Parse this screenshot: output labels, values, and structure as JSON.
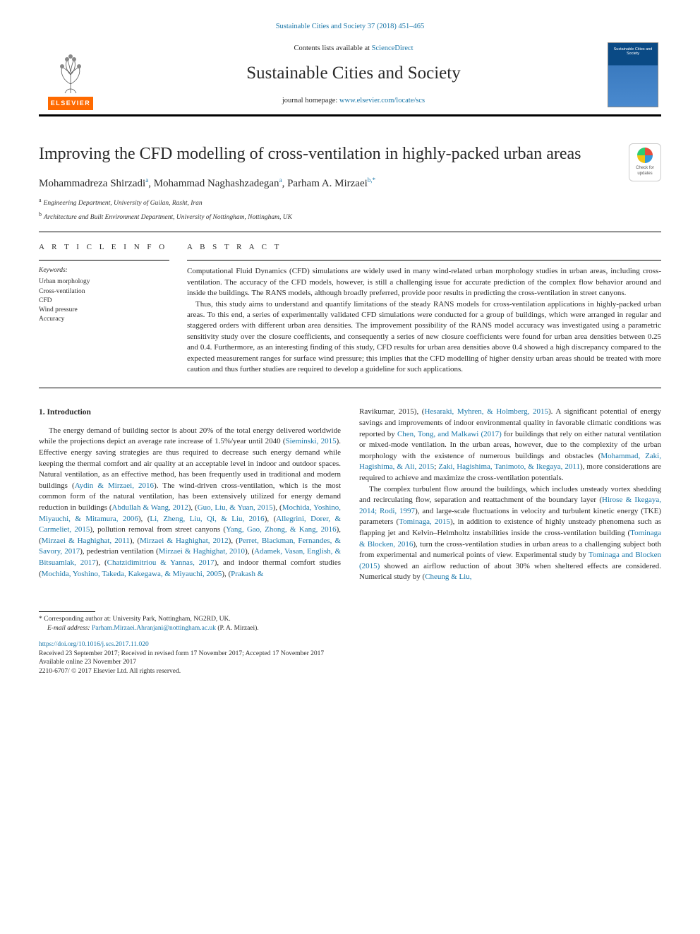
{
  "colors": {
    "link": "#1976a8",
    "text": "#2a2a2a",
    "elsevier_orange": "#ff6a00",
    "rule": "#000000"
  },
  "typography": {
    "body_font": "Georgia, 'Times New Roman', serif",
    "title_fontsize": 24,
    "journal_fontsize": 25,
    "abstract_fontsize": 11,
    "body_fontsize": 11,
    "footnote_fontsize": 9.5
  },
  "header": {
    "citation_prefix": "Sustainable Cities and Society 37 (2018) 451–465",
    "contents_line_prefix": "Contents lists available at ",
    "contents_link": "ScienceDirect",
    "journal_name": "Sustainable Cities and Society",
    "homepage_prefix": "journal homepage: ",
    "homepage_link": "www.elsevier.com/locate/scs",
    "elsevier_word": "ELSEVIER",
    "cover_label": "Sustainable Cities and Society",
    "crossmark_label": "Check for updates"
  },
  "article": {
    "title": "Improving the CFD modelling of cross-ventilation in highly-packed urban areas",
    "authors": [
      {
        "name": "Mohammadreza Shirzadi",
        "sup": "a"
      },
      {
        "name": "Mohammad Naghashzadegan",
        "sup": "a"
      },
      {
        "name": "Parham A. Mirzaei",
        "sup": "b,*"
      }
    ],
    "author_line_sep": ", ",
    "affiliations": [
      {
        "mark": "a",
        "text": "Engineering Department, University of Guilan, Rasht, Iran"
      },
      {
        "mark": "b",
        "text": "Architecture and Built Environment Department, University of Nottingham, Nottingham, UK"
      }
    ]
  },
  "info": {
    "section_head": "A R T I C L E  I N F O",
    "kw_head": "Keywords:",
    "keywords": [
      "Urban morphology",
      "Cross-ventilation",
      "CFD",
      "Wind pressure",
      "Accuracy"
    ]
  },
  "abstract": {
    "section_head": "A B S T R A C T",
    "paragraphs": [
      "Computational Fluid Dynamics (CFD) simulations are widely used in many wind-related urban morphology studies in urban areas, including cross-ventilation. The accuracy of the CFD models, however, is still a challenging issue for accurate prediction of the complex flow behavior around and inside the buildings. The RANS models, although broadly preferred, provide poor results in predicting the cross-ventilation in street canyons.",
      "Thus, this study aims to understand and quantify limitations of the steady RANS models for cross-ventilation applications in highly-packed urban areas. To this end, a series of experimentally validated CFD simulations were conducted for a group of buildings, which were arranged in regular and staggered orders with different urban area densities. The improvement possibility of the RANS model accuracy was investigated using a parametric sensitivity study over the closure coefficients, and consequently a series of new closure coefficients were found for urban area densities between 0.25 and 0.4. Furthermore, as an interesting finding of this study, CFD results for urban area densities above 0.4 showed a high discrepancy compared to the expected measurement ranges for surface wind pressure; this implies that the CFD modelling of higher density urban areas should be treated with more caution and thus further studies are required to develop a guideline for such applications."
    ]
  },
  "body": {
    "section_number": "1.",
    "section_title": "Introduction",
    "col1_html": "The energy demand of building sector is about 20% of the total energy delivered worldwide while the projections depict an average rate increase of 1.5%/year until 2040 (<a data-name='cite-link' data-interactable='true'>Sieminski, 2015</a>). Effective energy saving strategies are thus required to decrease such energy demand while keeping the thermal comfort and air quality at an acceptable level in indoor and outdoor spaces. Natural ventilation, as an effective method, has been frequently used in traditional and modern buildings (<a data-name='cite-link' data-interactable='true'>Aydin &amp; Mirzaei, 2016</a>). The wind-driven cross-ventilation, which is the most common form of the natural ventilation, has been extensively utilized for energy demand reduction in buildings (<a data-name='cite-link' data-interactable='true'>Abdullah &amp; Wang, 2012</a>), (<a data-name='cite-link' data-interactable='true'>Guo, Liu, &amp; Yuan, 2015</a>), (<a data-name='cite-link' data-interactable='true'>Mochida, Yoshino, Miyauchi, &amp; Mitamura, 2006</a>), (<a data-name='cite-link' data-interactable='true'>Li, Zheng, Liu, Qi, &amp; Liu, 2016</a>), (<a data-name='cite-link' data-interactable='true'>Allegrini, Dorer, &amp; Carmeliet, 2015</a>), pollution removal from street canyons (<a data-name='cite-link' data-interactable='true'>Yang, Gao, Zhong, &amp; Kang, 2016</a>), (<a data-name='cite-link' data-interactable='true'>Mirzaei &amp; Haghighat, 2011</a>), (<a data-name='cite-link' data-interactable='true'>Mirzaei &amp; Haghighat, 2012</a>), (<a data-name='cite-link' data-interactable='true'>Perret, Blackman, Fernandes, &amp; Savory, 2017</a>), pedestrian ventilation (<a data-name='cite-link' data-interactable='true'>Mirzaei &amp; Haghighat, 2010</a>), (<a data-name='cite-link' data-interactable='true'>Adamek, Vasan, English, &amp; Bitsuamlak, 2017</a>), (<a data-name='cite-link' data-interactable='true'>Chatzidimitriou &amp; Yannas, 2017</a>), and indoor thermal comfort studies (<a data-name='cite-link' data-interactable='true'>Mochida, Yoshino, Takeda, Kakegawa, &amp; Miyauchi, 2005</a>), (<a data-name='cite-link' data-interactable='true'>Prakash &amp;",
    "col2_html": "Ravikumar, 2015</a>), (<a data-name='cite-link' data-interactable='true'>Hesaraki, Myhren, &amp; Holmberg, 2015</a>). A significant potential of energy savings and improvements of indoor environmental quality in favorable climatic conditions was reported by <a data-name='cite-link' data-interactable='true'>Chen, Tong, and Malkawi (2017)</a> for buildings that rely on either natural ventilation or mixed-mode ventilation. In the urban areas, however, due to the complexity of the urban morphology with the existence of numerous buildings and obstacles (<a data-name='cite-link' data-interactable='true'>Mohammad, Zaki, Hagishima, &amp; Ali, 2015</a>; <a data-name='cite-link' data-interactable='true'>Zaki, Hagishima, Tanimoto, &amp; Ikegaya, 2011</a>), more considerations are required to achieve and maximize the cross-ventilation potentials.",
    "col2_p2_html": "The complex turbulent flow around the buildings, which includes unsteady vortex shedding and recirculating flow, separation and reattachment of the boundary layer (<a data-name='cite-link' data-interactable='true'>Hirose &amp; Ikegaya, 2014; Rodi, 1997</a>), and large-scale fluctuations in velocity and turbulent kinetic energy (TKE) parameters (<a data-name='cite-link' data-interactable='true'>Tominaga, 2015</a>), in addition to existence of highly unsteady phenomena such as flapping jet and Kelvin–Helmholtz instabilities inside the cross-ventilation building (<a data-name='cite-link' data-interactable='true'>Tominaga &amp; Blocken, 2016</a>), turn the cross-ventilation studies in urban areas to a challenging subject both from experimental and numerical points of view. Experimental study by <a data-name='cite-link' data-interactable='true'>Tominaga and Blocken (2015)</a> showed an airflow reduction of about 30% when sheltered effects are considered. Numerical study by (<a data-name='cite-link' data-interactable='true'>Cheung &amp; Liu,</a>"
  },
  "footer": {
    "corr_mark": "*",
    "corr_text": "Corresponding author at: University Park, Nottingham, NG2RD, UK.",
    "email_label": "E-mail address:",
    "email": "Parham.Mirzaei.Ahranjani@nottingham.ac.uk",
    "email_trail": " (P. A. Mirzaei).",
    "doi": "https://doi.org/10.1016/j.scs.2017.11.020",
    "dates": "Received 23 September 2017; Received in revised form 17 November 2017; Accepted 17 November 2017",
    "online": "Available online 23 November 2017",
    "copyright": "2210-6707/ © 2017 Elsevier Ltd. All rights reserved."
  }
}
